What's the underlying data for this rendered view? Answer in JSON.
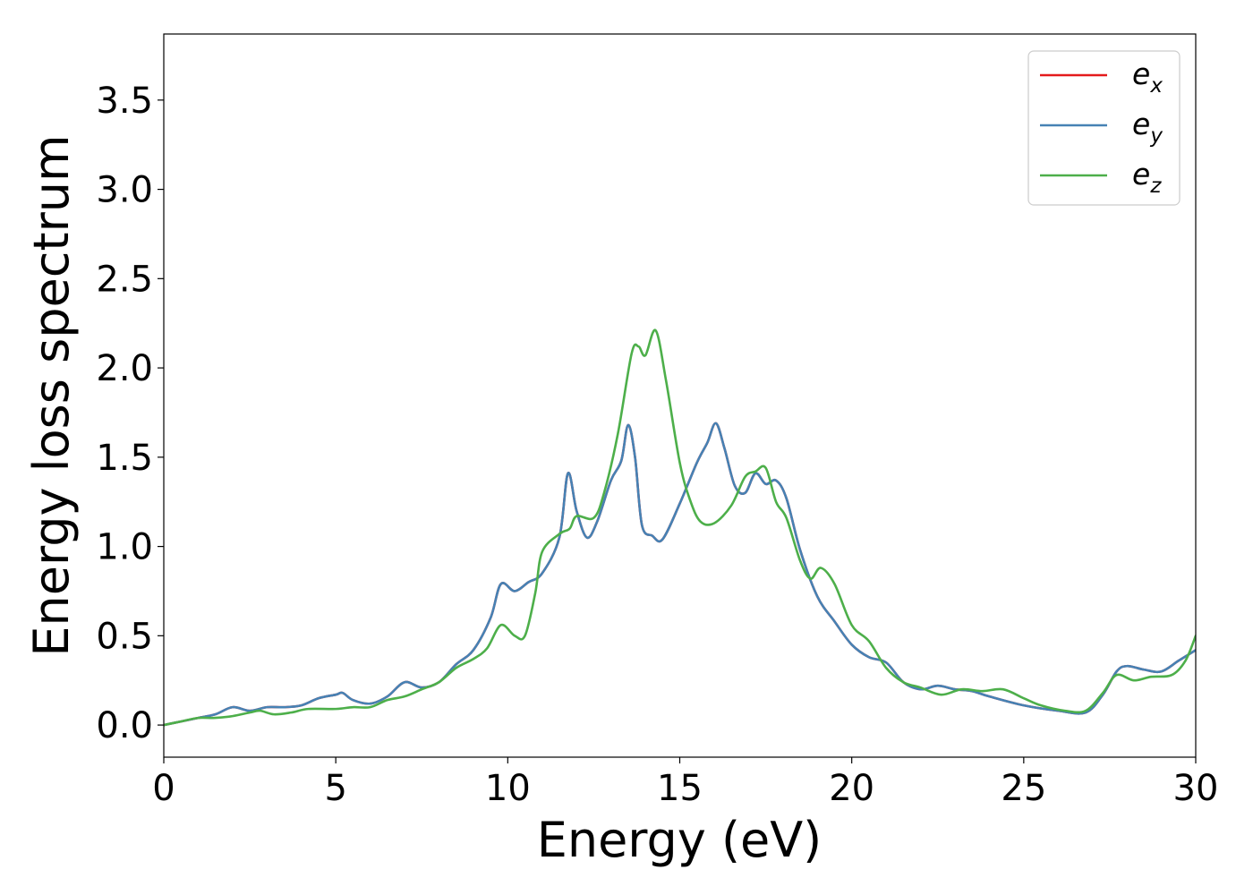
{
  "chart_data": {
    "type": "line",
    "xlabel": "Energy (eV)",
    "ylabel": "Energy loss spectrum",
    "xlim": [
      0,
      30
    ],
    "ylim": [
      -0.18,
      3.87
    ],
    "xticks": [
      0,
      5,
      10,
      15,
      20,
      25,
      30
    ],
    "yticks": [
      0.0,
      0.5,
      1.0,
      1.5,
      2.0,
      2.5,
      3.0,
      3.5
    ],
    "xtick_labels": [
      "0",
      "5",
      "10",
      "15",
      "20",
      "25",
      "30"
    ],
    "ytick_labels": [
      "0.0",
      "0.5",
      "1.0",
      "1.5",
      "2.0",
      "2.5",
      "3.0",
      "3.5"
    ],
    "grid": false,
    "legend_position": "top-right",
    "series": [
      {
        "name": "e",
        "subscript": "x",
        "color": "#e41a1c",
        "points": [
          [
            0,
            0
          ],
          [
            0.5,
            0.02
          ],
          [
            1,
            0.04
          ],
          [
            1.5,
            0.06
          ],
          [
            2,
            0.1
          ],
          [
            2.5,
            0.08
          ],
          [
            3,
            0.1
          ],
          [
            3.5,
            0.1
          ],
          [
            4,
            0.11
          ],
          [
            4.5,
            0.15
          ],
          [
            5,
            0.17
          ],
          [
            5.2,
            0.18
          ],
          [
            5.5,
            0.14
          ],
          [
            6,
            0.12
          ],
          [
            6.5,
            0.16
          ],
          [
            7,
            0.24
          ],
          [
            7.5,
            0.21
          ],
          [
            8,
            0.24
          ],
          [
            8.5,
            0.34
          ],
          [
            9,
            0.42
          ],
          [
            9.5,
            0.6
          ],
          [
            9.8,
            0.79
          ],
          [
            10.2,
            0.75
          ],
          [
            10.6,
            0.8
          ],
          [
            11,
            0.85
          ],
          [
            11.5,
            1.05
          ],
          [
            11.75,
            1.41
          ],
          [
            12,
            1.2
          ],
          [
            12.3,
            1.05
          ],
          [
            12.6,
            1.14
          ],
          [
            13,
            1.37
          ],
          [
            13.3,
            1.48
          ],
          [
            13.5,
            1.68
          ],
          [
            13.7,
            1.5
          ],
          [
            13.9,
            1.12
          ],
          [
            14.2,
            1.06
          ],
          [
            14.5,
            1.04
          ],
          [
            15,
            1.24
          ],
          [
            15.5,
            1.47
          ],
          [
            15.8,
            1.58
          ],
          [
            16.05,
            1.69
          ],
          [
            16.3,
            1.55
          ],
          [
            16.6,
            1.34
          ],
          [
            16.9,
            1.3
          ],
          [
            17.2,
            1.41
          ],
          [
            17.5,
            1.35
          ],
          [
            17.8,
            1.37
          ],
          [
            18.1,
            1.27
          ],
          [
            18.5,
            0.98
          ],
          [
            19,
            0.72
          ],
          [
            19.5,
            0.58
          ],
          [
            20,
            0.45
          ],
          [
            20.5,
            0.38
          ],
          [
            21,
            0.35
          ],
          [
            21.5,
            0.24
          ],
          [
            22,
            0.2
          ],
          [
            22.5,
            0.22
          ],
          [
            23,
            0.2
          ],
          [
            23.5,
            0.19
          ],
          [
            24,
            0.16
          ],
          [
            25,
            0.11
          ],
          [
            26,
            0.08
          ],
          [
            26.8,
            0.07
          ],
          [
            27.3,
            0.17
          ],
          [
            27.7,
            0.3
          ],
          [
            28,
            0.33
          ],
          [
            28.5,
            0.31
          ],
          [
            29,
            0.3
          ],
          [
            29.5,
            0.36
          ],
          [
            30,
            0.42
          ]
        ]
      },
      {
        "name": "e",
        "subscript": "y",
        "color": "#4682b4",
        "points": [
          [
            0,
            0
          ],
          [
            0.5,
            0.02
          ],
          [
            1,
            0.04
          ],
          [
            1.5,
            0.06
          ],
          [
            2,
            0.1
          ],
          [
            2.5,
            0.08
          ],
          [
            3,
            0.1
          ],
          [
            3.5,
            0.1
          ],
          [
            4,
            0.11
          ],
          [
            4.5,
            0.15
          ],
          [
            5,
            0.17
          ],
          [
            5.2,
            0.18
          ],
          [
            5.5,
            0.14
          ],
          [
            6,
            0.12
          ],
          [
            6.5,
            0.16
          ],
          [
            7,
            0.24
          ],
          [
            7.5,
            0.21
          ],
          [
            8,
            0.24
          ],
          [
            8.5,
            0.34
          ],
          [
            9,
            0.42
          ],
          [
            9.5,
            0.6
          ],
          [
            9.8,
            0.79
          ],
          [
            10.2,
            0.75
          ],
          [
            10.6,
            0.8
          ],
          [
            11,
            0.85
          ],
          [
            11.5,
            1.05
          ],
          [
            11.75,
            1.41
          ],
          [
            12,
            1.2
          ],
          [
            12.3,
            1.05
          ],
          [
            12.6,
            1.14
          ],
          [
            13,
            1.37
          ],
          [
            13.3,
            1.48
          ],
          [
            13.5,
            1.68
          ],
          [
            13.7,
            1.5
          ],
          [
            13.9,
            1.12
          ],
          [
            14.2,
            1.06
          ],
          [
            14.5,
            1.04
          ],
          [
            15,
            1.24
          ],
          [
            15.5,
            1.47
          ],
          [
            15.8,
            1.58
          ],
          [
            16.05,
            1.69
          ],
          [
            16.3,
            1.55
          ],
          [
            16.6,
            1.34
          ],
          [
            16.9,
            1.3
          ],
          [
            17.2,
            1.41
          ],
          [
            17.5,
            1.35
          ],
          [
            17.8,
            1.37
          ],
          [
            18.1,
            1.27
          ],
          [
            18.5,
            0.98
          ],
          [
            19,
            0.72
          ],
          [
            19.5,
            0.58
          ],
          [
            20,
            0.45
          ],
          [
            20.5,
            0.38
          ],
          [
            21,
            0.35
          ],
          [
            21.5,
            0.24
          ],
          [
            22,
            0.2
          ],
          [
            22.5,
            0.22
          ],
          [
            23,
            0.2
          ],
          [
            23.5,
            0.19
          ],
          [
            24,
            0.16
          ],
          [
            25,
            0.11
          ],
          [
            26,
            0.08
          ],
          [
            26.8,
            0.07
          ],
          [
            27.3,
            0.17
          ],
          [
            27.7,
            0.3
          ],
          [
            28,
            0.33
          ],
          [
            28.5,
            0.31
          ],
          [
            29,
            0.3
          ],
          [
            29.5,
            0.36
          ],
          [
            30,
            0.42
          ]
        ]
      },
      {
        "name": "e",
        "subscript": "z",
        "color": "#4daf4a",
        "points": [
          [
            0,
            0
          ],
          [
            0.5,
            0.02
          ],
          [
            1,
            0.04
          ],
          [
            1.5,
            0.04
          ],
          [
            2,
            0.05
          ],
          [
            2.5,
            0.07
          ],
          [
            2.8,
            0.08
          ],
          [
            3.2,
            0.06
          ],
          [
            3.7,
            0.07
          ],
          [
            4.2,
            0.09
          ],
          [
            5,
            0.09
          ],
          [
            5.5,
            0.1
          ],
          [
            6,
            0.1
          ],
          [
            6.5,
            0.14
          ],
          [
            7,
            0.16
          ],
          [
            7.5,
            0.2
          ],
          [
            8,
            0.24
          ],
          [
            8.5,
            0.32
          ],
          [
            9,
            0.37
          ],
          [
            9.4,
            0.43
          ],
          [
            9.8,
            0.56
          ],
          [
            10.2,
            0.5
          ],
          [
            10.5,
            0.5
          ],
          [
            10.8,
            0.74
          ],
          [
            11,
            0.97
          ],
          [
            11.5,
            1.07
          ],
          [
            11.8,
            1.1
          ],
          [
            12,
            1.17
          ],
          [
            12.5,
            1.16
          ],
          [
            12.8,
            1.3
          ],
          [
            13.2,
            1.63
          ],
          [
            13.6,
            2.08
          ],
          [
            13.8,
            2.12
          ],
          [
            14,
            2.07
          ],
          [
            14.3,
            2.21
          ],
          [
            14.6,
            1.93
          ],
          [
            15,
            1.47
          ],
          [
            15.3,
            1.26
          ],
          [
            15.6,
            1.14
          ],
          [
            16,
            1.13
          ],
          [
            16.5,
            1.23
          ],
          [
            16.9,
            1.39
          ],
          [
            17.2,
            1.42
          ],
          [
            17.5,
            1.44
          ],
          [
            17.8,
            1.25
          ],
          [
            18.1,
            1.16
          ],
          [
            18.5,
            0.92
          ],
          [
            18.8,
            0.82
          ],
          [
            19.1,
            0.88
          ],
          [
            19.5,
            0.79
          ],
          [
            20,
            0.56
          ],
          [
            20.5,
            0.47
          ],
          [
            21,
            0.32
          ],
          [
            21.5,
            0.24
          ],
          [
            22,
            0.21
          ],
          [
            22.6,
            0.17
          ],
          [
            23.2,
            0.2
          ],
          [
            23.8,
            0.19
          ],
          [
            24.4,
            0.2
          ],
          [
            25,
            0.15
          ],
          [
            25.5,
            0.11
          ],
          [
            26.2,
            0.08
          ],
          [
            26.8,
            0.08
          ],
          [
            27.3,
            0.18
          ],
          [
            27.7,
            0.28
          ],
          [
            28.2,
            0.25
          ],
          [
            28.7,
            0.27
          ],
          [
            29.3,
            0.28
          ],
          [
            29.7,
            0.36
          ],
          [
            30,
            0.5
          ]
        ]
      }
    ]
  }
}
